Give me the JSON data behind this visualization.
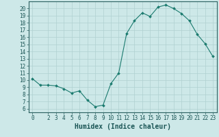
{
  "x": [
    0,
    1,
    2,
    3,
    4,
    5,
    6,
    7,
    8,
    9,
    10,
    11,
    12,
    13,
    14,
    15,
    16,
    17,
    18,
    19,
    20,
    21,
    22,
    23
  ],
  "y": [
    10.2,
    9.3,
    9.3,
    9.2,
    8.8,
    8.2,
    8.5,
    7.2,
    6.3,
    6.5,
    9.5,
    11.0,
    16.5,
    18.3,
    19.4,
    18.9,
    20.2,
    20.5,
    20.0,
    19.3,
    18.3,
    16.4,
    15.1,
    13.3
  ],
  "line_color": "#1a7a6e",
  "marker_color": "#1a7a6e",
  "bg_color": "#cde8e8",
  "grid_color": "#afd0d0",
  "axis_color": "#2a6060",
  "xlabel": "Humidex (Indice chaleur)",
  "xlim": [
    -0.5,
    23.5
  ],
  "ylim": [
    5.5,
    21.0
  ],
  "yticks": [
    6,
    7,
    8,
    9,
    10,
    11,
    12,
    13,
    14,
    15,
    16,
    17,
    18,
    19,
    20
  ],
  "xticks": [
    0,
    2,
    3,
    4,
    5,
    6,
    7,
    8,
    9,
    10,
    11,
    12,
    13,
    14,
    15,
    16,
    17,
    18,
    19,
    20,
    21,
    22,
    23
  ],
  "font_color": "#1a5555",
  "tick_fontsize": 5.5,
  "label_fontsize": 7.0
}
